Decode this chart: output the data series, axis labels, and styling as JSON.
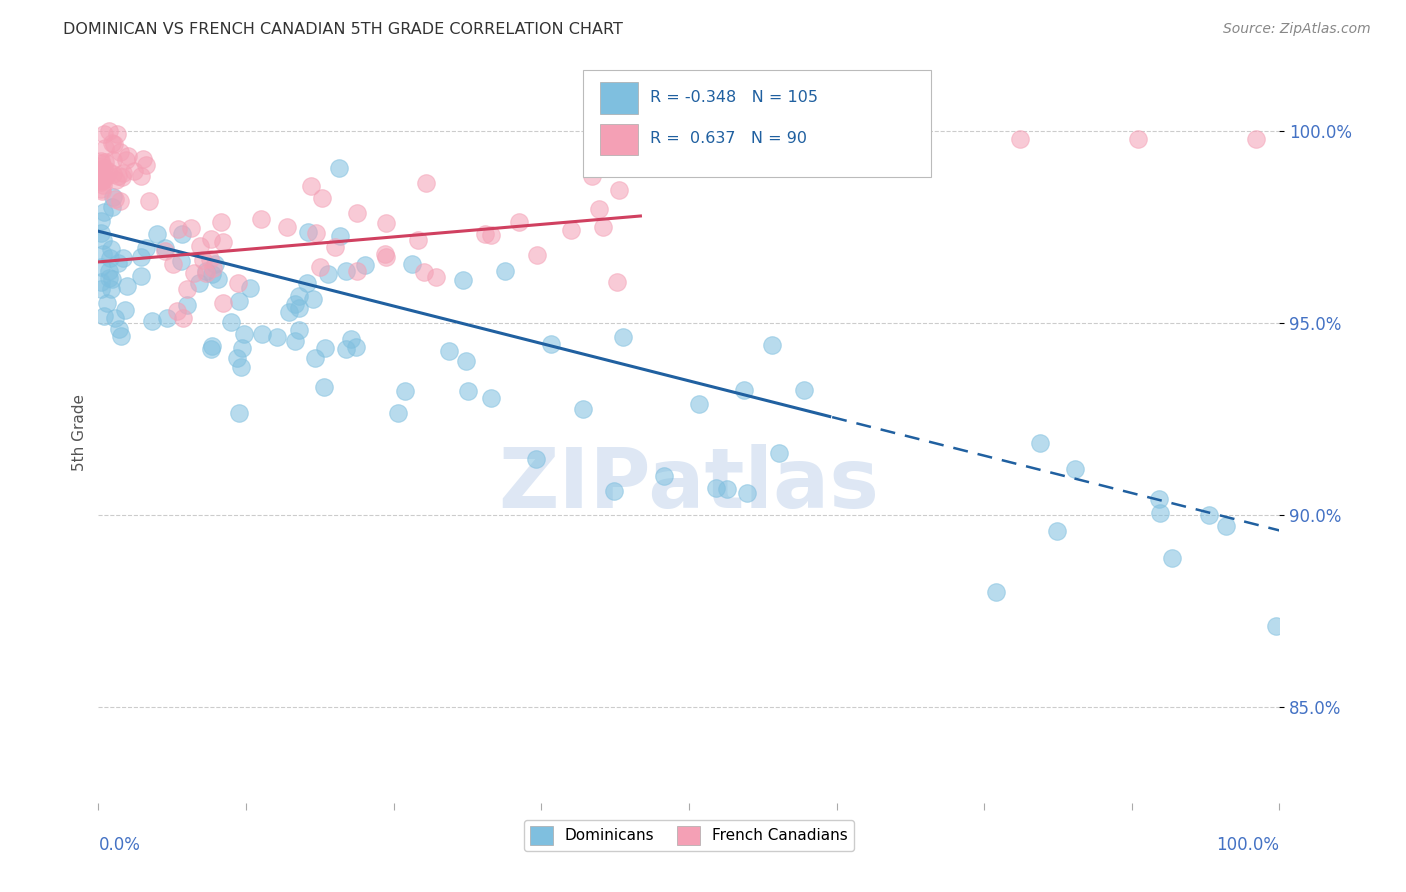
{
  "title": "DOMINICAN VS FRENCH CANADIAN 5TH GRADE CORRELATION CHART",
  "source": "Source: ZipAtlas.com",
  "ylabel": "5th Grade",
  "ytick_labels": [
    "85.0%",
    "90.0%",
    "95.0%",
    "100.0%"
  ],
  "ytick_values": [
    0.85,
    0.9,
    0.95,
    1.0
  ],
  "xmin": 0.0,
  "xmax": 1.0,
  "ymin": 0.825,
  "ymax": 1.018,
  "legend_blue_label": "Dominicans",
  "legend_pink_label": "French Canadians",
  "R_blue": -0.348,
  "N_blue": 105,
  "R_pink": 0.637,
  "N_pink": 90,
  "blue_color": "#7fbfdf",
  "pink_color": "#f4a0b5",
  "trend_blue_color": "#2060a0",
  "trend_pink_color": "#d04060",
  "watermark": "ZIPatlas",
  "blue_trend_start_x": 0.0,
  "blue_trend_start_y": 0.974,
  "blue_trend_end_x": 1.0,
  "blue_trend_end_y": 0.896,
  "blue_trend_solid_end": 0.62,
  "pink_trend_start_x": 0.0,
  "pink_trend_start_y": 0.966,
  "pink_trend_end_x": 0.46,
  "pink_trend_end_y": 0.978
}
